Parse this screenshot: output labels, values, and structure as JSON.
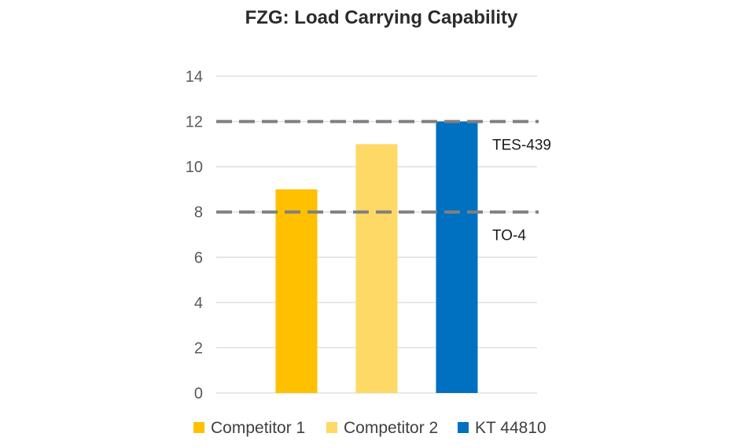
{
  "chart_data": {
    "type": "bar",
    "title": "FZG: Load Carrying Capability",
    "categories": [
      "Competitor 1",
      "Competitor 2",
      "KT 44810"
    ],
    "values": [
      9,
      11,
      12
    ],
    "colors": [
      "#ffc000",
      "#ffd966",
      "#0070c0"
    ],
    "ylim": [
      0,
      14
    ],
    "yticks": [
      0,
      2,
      4,
      6,
      8,
      10,
      12,
      14
    ],
    "xlabel": "",
    "ylabel": "",
    "grid": true,
    "legend_position": "bottom",
    "reference_lines": [
      {
        "label": "TES-439",
        "value": 12,
        "color": "#808080"
      },
      {
        "label": "TO-4",
        "value": 8,
        "color": "#808080"
      }
    ]
  }
}
